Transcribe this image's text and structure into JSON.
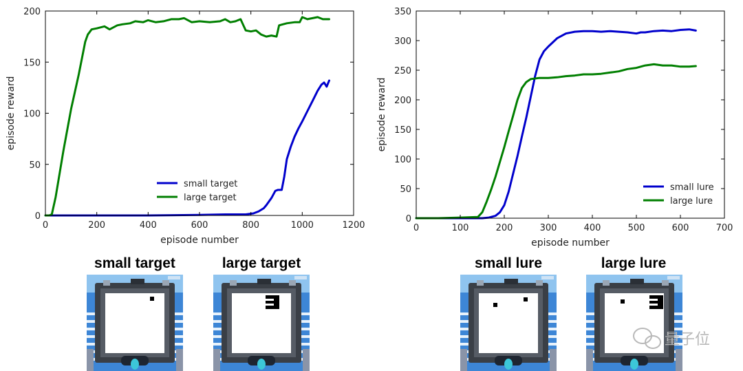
{
  "chart_data": [
    {
      "type": "line",
      "xlabel": "episode number",
      "ylabel": "episode reward",
      "xlim": [
        0,
        1200
      ],
      "ylim": [
        0,
        200
      ],
      "xticks": [
        "0",
        "200",
        "400",
        "600",
        "800",
        "1000",
        "1200"
      ],
      "yticks": [
        "0",
        "50",
        "100",
        "150",
        "200"
      ],
      "legend_position": "lower-center",
      "series": [
        {
          "name": "small target",
          "color": "#0000cc",
          "x": [
            0,
            200,
            400,
            600,
            700,
            780,
            810,
            830,
            850,
            860,
            880,
            895,
            905,
            920,
            930,
            940,
            955,
            970,
            985,
            1000,
            1020,
            1040,
            1060,
            1075,
            1085,
            1095,
            1105
          ],
          "y": [
            0,
            0,
            0,
            0.5,
            1,
            1,
            2,
            4,
            7,
            10,
            17,
            24,
            25,
            25,
            38,
            55,
            67,
            77,
            85,
            92,
            102,
            112,
            122,
            128,
            130,
            126,
            132
          ]
        },
        {
          "name": "large target",
          "color": "#007f00",
          "x": [
            0,
            15,
            25,
            40,
            70,
            100,
            130,
            155,
            165,
            180,
            200,
            230,
            250,
            280,
            300,
            330,
            350,
            380,
            400,
            430,
            460,
            490,
            520,
            540,
            570,
            600,
            640,
            680,
            700,
            720,
            740,
            760,
            780,
            800,
            820,
            840,
            860,
            880,
            900,
            910,
            940,
            970,
            990,
            1000,
            1020,
            1040,
            1060,
            1080,
            1105
          ],
          "y": [
            0,
            0,
            1,
            18,
            63,
            104,
            138,
            170,
            177,
            182,
            183,
            185,
            182,
            186,
            187,
            188,
            190,
            189,
            191,
            189,
            190,
            192,
            192,
            193,
            189,
            190,
            189,
            190,
            192,
            189,
            190,
            192,
            181,
            180,
            181,
            177,
            175,
            176,
            175,
            186,
            188,
            189,
            189,
            194,
            192,
            193,
            194,
            192,
            192
          ]
        }
      ]
    },
    {
      "type": "line",
      "xlabel": "episode number",
      "ylabel": "episode reward",
      "xlim": [
        0,
        700
      ],
      "ylim": [
        0,
        350
      ],
      "xticks": [
        "0",
        "100",
        "200",
        "300",
        "400",
        "500",
        "600",
        "700"
      ],
      "yticks": [
        "0",
        "50",
        "100",
        "150",
        "200",
        "250",
        "300",
        "350"
      ],
      "legend_position": "lower-right",
      "series": [
        {
          "name": "small lure",
          "color": "#0000cc",
          "x": [
            0,
            50,
            100,
            150,
            165,
            180,
            190,
            200,
            210,
            220,
            230,
            240,
            250,
            260,
            270,
            280,
            290,
            300,
            320,
            340,
            360,
            380,
            400,
            420,
            440,
            460,
            480,
            500,
            510,
            520,
            540,
            560,
            580,
            600,
            620,
            635
          ],
          "y": [
            0,
            0,
            0,
            0,
            1,
            4,
            10,
            22,
            45,
            75,
            105,
            138,
            170,
            205,
            240,
            268,
            282,
            290,
            304,
            312,
            315,
            316,
            316,
            315,
            316,
            315,
            314,
            312,
            314,
            314,
            316,
            317,
            316,
            318,
            319,
            317
          ]
        },
        {
          "name": "large lure",
          "color": "#007f00",
          "x": [
            0,
            50,
            100,
            140,
            150,
            160,
            170,
            180,
            190,
            200,
            210,
            220,
            230,
            240,
            250,
            260,
            280,
            300,
            320,
            340,
            360,
            380,
            400,
            420,
            440,
            460,
            480,
            500,
            520,
            540,
            560,
            580,
            600,
            620,
            635
          ],
          "y": [
            0,
            0,
            1,
            2,
            10,
            28,
            48,
            70,
            95,
            120,
            147,
            173,
            200,
            220,
            230,
            235,
            237,
            237,
            238,
            240,
            241,
            243,
            243,
            244,
            246,
            248,
            252,
            254,
            258,
            260,
            258,
            258,
            256,
            256,
            257
          ]
        }
      ]
    }
  ],
  "thumbnails": [
    {
      "title": "small target",
      "variant": "target",
      "marker": "small"
    },
    {
      "title": "large target",
      "variant": "target",
      "marker": "large"
    },
    {
      "title": "small lure",
      "variant": "lure",
      "marker": "small"
    },
    {
      "title": "large lure",
      "variant": "lure",
      "marker": "large"
    }
  ],
  "watermark": {
    "text": "量子位"
  }
}
